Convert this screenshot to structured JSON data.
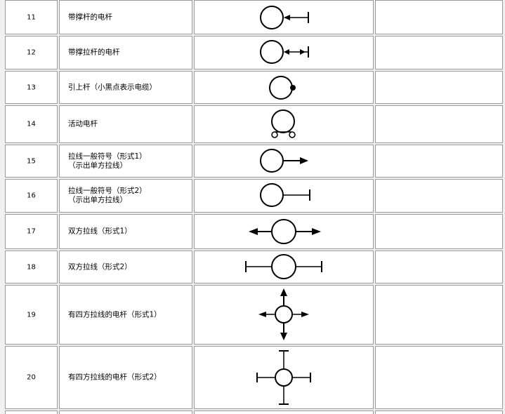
{
  "table": {
    "rows": [
      {
        "num": "11",
        "name": [
          "带撑杆的电杆"
        ],
        "symbol": "pole-with-strut"
      },
      {
        "num": "12",
        "name": [
          "带撑拉杆的电杆"
        ],
        "symbol": "pole-with-strut-tie"
      },
      {
        "num": "13",
        "name": [
          "引上杆（小黑点表示电缆）"
        ],
        "symbol": "riser-pole"
      },
      {
        "num": "14",
        "name": [
          "活动电杆"
        ],
        "symbol": "movable-pole"
      },
      {
        "num": "15",
        "name": [
          "拉线一般符号（形式1）",
          "（示出单方拉线）"
        ],
        "symbol": "guy-wire-form1"
      },
      {
        "num": "16",
        "name": [
          "拉线一般符号（形式2）",
          "（示出单方拉线）"
        ],
        "symbol": "guy-wire-form2"
      },
      {
        "num": "17",
        "name": [
          "双方拉线（形式1）"
        ],
        "symbol": "two-way-guy-form1"
      },
      {
        "num": "18",
        "name": [
          "双方拉线（形式2）"
        ],
        "symbol": "two-way-guy-form2"
      },
      {
        "num": "19",
        "name": [
          "有四方拉线的电杆（形式1）"
        ],
        "symbol": "four-way-guy-form1"
      },
      {
        "num": "20",
        "name": [
          "有四方拉线的电杆（形式2）"
        ],
        "symbol": "four-way-guy-form2"
      }
    ]
  },
  "colors": {
    "border": "#9a9a9a",
    "background": "#f0f0f0",
    "cell": "#ffffff",
    "ink": "#000000"
  }
}
